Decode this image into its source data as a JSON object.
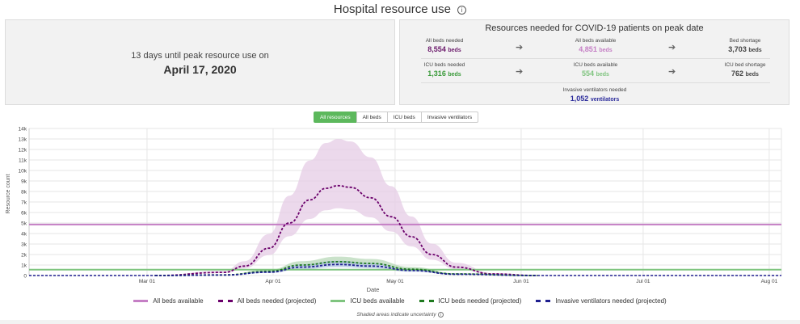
{
  "header": {
    "title": "Hospital resource use",
    "info_icon": "info-icon"
  },
  "left_panel": {
    "countdown": "13 days until peak resource use on",
    "peak_date": "April 17, 2020"
  },
  "right_panel": {
    "title": "Resources needed for COVID-19 patients on peak date",
    "all_beds_needed": {
      "label": "All beds needed",
      "value": "8,554",
      "unit": "beds"
    },
    "all_beds_available": {
      "label": "All beds available",
      "value": "4,851",
      "unit": "beds"
    },
    "bed_shortage": {
      "label": "Bed shortage",
      "value": "3,703",
      "unit": "beds"
    },
    "icu_beds_needed": {
      "label": "ICU beds needed",
      "value": "1,316",
      "unit": "beds"
    },
    "icu_beds_available": {
      "label": "ICU beds available",
      "value": "554",
      "unit": "beds"
    },
    "icu_bed_shortage": {
      "label": "ICU bed shortage",
      "value": "762",
      "unit": "beds"
    },
    "ventilators_needed": {
      "label": "Invasive ventilators needed",
      "value": "1,052",
      "unit": "ventilators"
    },
    "arrow_icon": "arrow-right-icon"
  },
  "tabs": [
    {
      "label": "All resources",
      "active": true
    },
    {
      "label": "All beds",
      "active": false
    },
    {
      "label": "ICU beds",
      "active": false
    },
    {
      "label": "Invasive ventilators",
      "active": false
    }
  ],
  "colors": {
    "all_beds": "#c57fc5",
    "all_beds_needed": "#6b006b",
    "icu_avail": "#7fc47f",
    "icu_needed": "#1f7a1f",
    "vent": "#1f1f8f",
    "band_beds": "#e6cce6",
    "band_icu": "#b8d8b8",
    "band_vent": "#b3c6e6"
  },
  "chart_data": {
    "type": "line",
    "xlabel": "Date",
    "ylabel": "Resource count",
    "y_ticks": [
      "0",
      "1k",
      "2k",
      "3k",
      "4k",
      "5k",
      "6k",
      "7k",
      "8k",
      "9k",
      "10k",
      "11k",
      "12k",
      "13k",
      "14k"
    ],
    "ylim": [
      0,
      14000
    ],
    "x_ticks": [
      "Mar 01",
      "Apr 01",
      "May 01",
      "Jun 01",
      "Jul 01",
      "Aug 01"
    ],
    "xlim_dates": [
      "2020-02-01",
      "2020-08-04"
    ],
    "series": [
      {
        "name": "All beds available",
        "style": "solid",
        "x": [
          "2020-02-01",
          "2020-08-04"
        ],
        "y": [
          4851,
          4851
        ]
      },
      {
        "name": "All beds needed (projected)",
        "style": "dashed",
        "peak_date": "2020-04-17",
        "peak": 8554,
        "band_upper_peak": 13000,
        "band_lower_peak": 6400,
        "x": [
          "2020-03-03",
          "2020-03-20",
          "2020-03-25",
          "2020-03-31",
          "2020-04-05",
          "2020-04-10",
          "2020-04-14",
          "2020-04-17",
          "2020-04-20",
          "2020-04-25",
          "2020-04-30",
          "2020-05-05",
          "2020-05-10",
          "2020-05-16",
          "2020-05-25",
          "2020-06-05"
        ],
        "y": [
          0,
          300,
          900,
          2600,
          5000,
          7200,
          8300,
          8554,
          8400,
          7400,
          5600,
          3700,
          2000,
          800,
          150,
          0
        ]
      },
      {
        "name": "ICU beds available",
        "style": "solid",
        "x": [
          "2020-02-01",
          "2020-08-04"
        ],
        "y": [
          554,
          554
        ]
      },
      {
        "name": "ICU beds needed (projected)",
        "style": "dashed",
        "peak_date": "2020-04-17",
        "peak": 1316,
        "band_upper_peak": 1800,
        "band_lower_peak": 1000,
        "x": [
          "2020-03-03",
          "2020-03-20",
          "2020-03-31",
          "2020-04-08",
          "2020-04-17",
          "2020-04-25",
          "2020-05-05",
          "2020-05-16",
          "2020-06-05"
        ],
        "y": [
          0,
          60,
          400,
          1000,
          1316,
          1150,
          600,
          150,
          0
        ]
      },
      {
        "name": "Invasive ventilators needed (projected)",
        "style": "dashed",
        "peak_date": "2020-04-17",
        "peak": 1052,
        "band_upper_peak": 1400,
        "band_lower_peak": 800,
        "x": [
          "2020-03-03",
          "2020-03-20",
          "2020-03-31",
          "2020-04-08",
          "2020-04-17",
          "2020-04-25",
          "2020-05-05",
          "2020-05-16",
          "2020-06-05"
        ],
        "y": [
          0,
          50,
          320,
          800,
          1052,
          900,
          480,
          120,
          0
        ]
      }
    ],
    "note": "Shaded areas indicate uncertainty"
  }
}
